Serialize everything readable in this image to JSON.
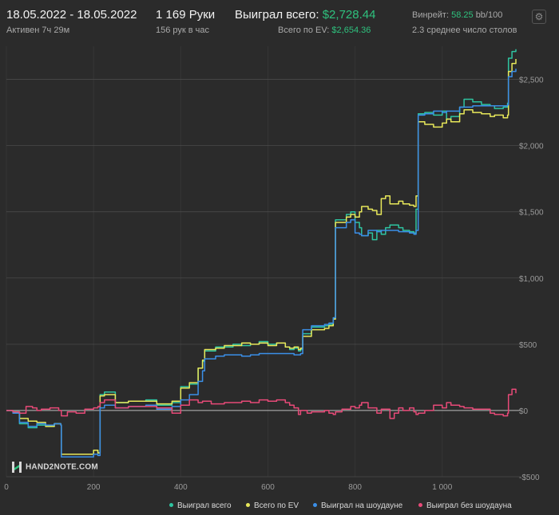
{
  "header": {
    "date_range": "18.05.2022 - 18.05.2022",
    "active_time": "Активен 7ч 29м",
    "hands": "1 169 Руки",
    "hands_per_hour": "156 рук в час",
    "won_total_label": "Выиграл всего:",
    "won_total_value": "$2,728.44",
    "ev_total_label": "Всего по EV:",
    "ev_total_value": "$2,654.36",
    "winrate_label": "Винрейт:",
    "winrate_value": "58.25",
    "winrate_suffix": "bb/100",
    "avg_tables": "2.3 среднее число столов"
  },
  "logo_text": "HAND2NOTE.COM",
  "icons": {
    "settings": "gear-icon"
  },
  "colors": {
    "background": "#2b2b2b",
    "won_total": "#2ec4a0",
    "ev": "#e8e85a",
    "showdown": "#3b8fe8",
    "no_showdown": "#e84a78",
    "accent": "#2ec27e"
  },
  "chart_data": {
    "type": "line",
    "xlim": [
      0,
      1169
    ],
    "ylim": [
      -500,
      2750
    ],
    "x_ticks": [
      0,
      200,
      400,
      600,
      800,
      1000
    ],
    "x_tick_labels": [
      "0",
      "200",
      "400",
      "600",
      "800",
      "1 000"
    ],
    "y_ticks": [
      -500,
      0,
      500,
      1000,
      1500,
      2000,
      2500
    ],
    "y_tick_labels": [
      "-$500",
      "$0",
      "$500",
      "$1,000",
      "$1,500",
      "$2,000",
      "$2,500"
    ],
    "grid": true,
    "legend_position": "bottom",
    "series": [
      {
        "name": "Выиграл всего",
        "color": "#2ec4a0",
        "points": [
          [
            0,
            0
          ],
          [
            15,
            -10
          ],
          [
            30,
            -100
          ],
          [
            50,
            -130
          ],
          [
            70,
            -110
          ],
          [
            90,
            -120
          ],
          [
            110,
            -100
          ],
          [
            125,
            -110
          ],
          [
            126,
            -330
          ],
          [
            160,
            -330
          ],
          [
            200,
            -300
          ],
          [
            210,
            -320
          ],
          [
            215,
            120
          ],
          [
            225,
            140
          ],
          [
            250,
            60
          ],
          [
            280,
            70
          ],
          [
            320,
            80
          ],
          [
            345,
            40
          ],
          [
            380,
            60
          ],
          [
            400,
            180
          ],
          [
            420,
            200
          ],
          [
            440,
            320
          ],
          [
            450,
            370
          ],
          [
            455,
            450
          ],
          [
            480,
            480
          ],
          [
            500,
            480
          ],
          [
            520,
            500
          ],
          [
            540,
            490
          ],
          [
            560,
            500
          ],
          [
            580,
            520
          ],
          [
            600,
            500
          ],
          [
            620,
            510
          ],
          [
            640,
            480
          ],
          [
            650,
            460
          ],
          [
            660,
            470
          ],
          [
            670,
            450
          ],
          [
            675,
            460
          ],
          [
            680,
            580
          ],
          [
            700,
            630
          ],
          [
            730,
            640
          ],
          [
            740,
            650
          ],
          [
            750,
            700
          ],
          [
            755,
            1440
          ],
          [
            780,
            1480
          ],
          [
            790,
            1500
          ],
          [
            800,
            1420
          ],
          [
            810,
            1380
          ],
          [
            815,
            1320
          ],
          [
            830,
            1340
          ],
          [
            840,
            1290
          ],
          [
            850,
            1360
          ],
          [
            860,
            1330
          ],
          [
            870,
            1380
          ],
          [
            880,
            1400
          ],
          [
            900,
            1380
          ],
          [
            910,
            1360
          ],
          [
            925,
            1350
          ],
          [
            935,
            1340
          ],
          [
            940,
            1520
          ],
          [
            945,
            2240
          ],
          [
            960,
            2250
          ],
          [
            980,
            2230
          ],
          [
            1000,
            2260
          ],
          [
            1010,
            2200
          ],
          [
            1020,
            2220
          ],
          [
            1040,
            2290
          ],
          [
            1050,
            2350
          ],
          [
            1070,
            2330
          ],
          [
            1090,
            2310
          ],
          [
            1110,
            2300
          ],
          [
            1120,
            2280
          ],
          [
            1140,
            2290
          ],
          [
            1150,
            2320
          ],
          [
            1152,
            2660
          ],
          [
            1160,
            2710
          ],
          [
            1169,
            2728
          ]
        ]
      },
      {
        "name": "Всего по EV",
        "color": "#e8e85a",
        "points": [
          [
            0,
            0
          ],
          [
            15,
            -10
          ],
          [
            30,
            -60
          ],
          [
            50,
            -80
          ],
          [
            70,
            -90
          ],
          [
            90,
            -120
          ],
          [
            110,
            -100
          ],
          [
            125,
            -110
          ],
          [
            126,
            -330
          ],
          [
            160,
            -330
          ],
          [
            200,
            -300
          ],
          [
            210,
            -320
          ],
          [
            215,
            110
          ],
          [
            225,
            120
          ],
          [
            250,
            60
          ],
          [
            280,
            70
          ],
          [
            320,
            70
          ],
          [
            345,
            50
          ],
          [
            380,
            70
          ],
          [
            400,
            170
          ],
          [
            420,
            210
          ],
          [
            440,
            320
          ],
          [
            450,
            380
          ],
          [
            455,
            460
          ],
          [
            480,
            470
          ],
          [
            500,
            490
          ],
          [
            520,
            490
          ],
          [
            540,
            510
          ],
          [
            560,
            500
          ],
          [
            580,
            510
          ],
          [
            600,
            490
          ],
          [
            620,
            510
          ],
          [
            640,
            480
          ],
          [
            650,
            470
          ],
          [
            660,
            480
          ],
          [
            670,
            460
          ],
          [
            675,
            470
          ],
          [
            680,
            560
          ],
          [
            700,
            610
          ],
          [
            730,
            620
          ],
          [
            740,
            640
          ],
          [
            750,
            690
          ],
          [
            755,
            1420
          ],
          [
            780,
            1460
          ],
          [
            790,
            1480
          ],
          [
            800,
            1460
          ],
          [
            810,
            1500
          ],
          [
            815,
            1540
          ],
          [
            830,
            1520
          ],
          [
            840,
            1510
          ],
          [
            850,
            1480
          ],
          [
            860,
            1600
          ],
          [
            870,
            1620
          ],
          [
            880,
            1560
          ],
          [
            900,
            1580
          ],
          [
            910,
            1560
          ],
          [
            925,
            1550
          ],
          [
            935,
            1540
          ],
          [
            940,
            1620
          ],
          [
            945,
            2180
          ],
          [
            960,
            2160
          ],
          [
            980,
            2140
          ],
          [
            1000,
            2170
          ],
          [
            1010,
            2200
          ],
          [
            1020,
            2180
          ],
          [
            1040,
            2240
          ],
          [
            1050,
            2270
          ],
          [
            1070,
            2250
          ],
          [
            1090,
            2240
          ],
          [
            1110,
            2220
          ],
          [
            1120,
            2230
          ],
          [
            1140,
            2210
          ],
          [
            1150,
            2230
          ],
          [
            1152,
            2560
          ],
          [
            1160,
            2620
          ],
          [
            1169,
            2654
          ]
        ]
      },
      {
        "name": "Выиграл на шоудауне",
        "color": "#3b8fe8",
        "points": [
          [
            0,
            0
          ],
          [
            15,
            -20
          ],
          [
            30,
            -90
          ],
          [
            50,
            -120
          ],
          [
            70,
            -100
          ],
          [
            90,
            -110
          ],
          [
            110,
            -100
          ],
          [
            125,
            -110
          ],
          [
            126,
            -350
          ],
          [
            160,
            -350
          ],
          [
            200,
            -330
          ],
          [
            210,
            -340
          ],
          [
            215,
            20
          ],
          [
            225,
            40
          ],
          [
            250,
            20
          ],
          [
            280,
            30
          ],
          [
            320,
            40
          ],
          [
            345,
            10
          ],
          [
            380,
            30
          ],
          [
            400,
            80
          ],
          [
            420,
            120
          ],
          [
            440,
            220
          ],
          [
            450,
            300
          ],
          [
            455,
            390
          ],
          [
            480,
            410
          ],
          [
            500,
            420
          ],
          [
            520,
            420
          ],
          [
            540,
            410
          ],
          [
            560,
            420
          ],
          [
            580,
            430
          ],
          [
            600,
            430
          ],
          [
            620,
            430
          ],
          [
            640,
            430
          ],
          [
            650,
            430
          ],
          [
            660,
            420
          ],
          [
            670,
            420
          ],
          [
            675,
            430
          ],
          [
            680,
            610
          ],
          [
            700,
            640
          ],
          [
            730,
            650
          ],
          [
            740,
            660
          ],
          [
            750,
            700
          ],
          [
            755,
            1380
          ],
          [
            780,
            1420
          ],
          [
            790,
            1440
          ],
          [
            800,
            1340
          ],
          [
            810,
            1330
          ],
          [
            815,
            1320
          ],
          [
            830,
            1360
          ],
          [
            840,
            1360
          ],
          [
            850,
            1350
          ],
          [
            860,
            1360
          ],
          [
            870,
            1360
          ],
          [
            880,
            1360
          ],
          [
            900,
            1350
          ],
          [
            910,
            1350
          ],
          [
            925,
            1340
          ],
          [
            935,
            1330
          ],
          [
            940,
            1360
          ],
          [
            945,
            2230
          ],
          [
            960,
            2240
          ],
          [
            980,
            2260
          ],
          [
            1000,
            2250
          ],
          [
            1010,
            2260
          ],
          [
            1020,
            2260
          ],
          [
            1040,
            2290
          ],
          [
            1050,
            2290
          ],
          [
            1070,
            2300
          ],
          [
            1090,
            2300
          ],
          [
            1110,
            2300
          ],
          [
            1120,
            2300
          ],
          [
            1140,
            2300
          ],
          [
            1150,
            2310
          ],
          [
            1152,
            2520
          ],
          [
            1160,
            2560
          ],
          [
            1169,
            2580
          ]
        ]
      },
      {
        "name": "Выиграл без шоудауна",
        "color": "#e84a78",
        "points": [
          [
            0,
            0
          ],
          [
            15,
            -10
          ],
          [
            30,
            -20
          ],
          [
            45,
            30
          ],
          [
            60,
            20
          ],
          [
            70,
            0
          ],
          [
            80,
            10
          ],
          [
            100,
            20
          ],
          [
            120,
            0
          ],
          [
            126,
            -40
          ],
          [
            140,
            -10
          ],
          [
            160,
            -20
          ],
          [
            180,
            10
          ],
          [
            200,
            20
          ],
          [
            210,
            30
          ],
          [
            215,
            60
          ],
          [
            225,
            80
          ],
          [
            250,
            20
          ],
          [
            280,
            30
          ],
          [
            320,
            30
          ],
          [
            345,
            20
          ],
          [
            380,
            -20
          ],
          [
            400,
            40
          ],
          [
            420,
            80
          ],
          [
            440,
            60
          ],
          [
            450,
            70
          ],
          [
            470,
            50
          ],
          [
            500,
            60
          ],
          [
            520,
            60
          ],
          [
            540,
            70
          ],
          [
            560,
            60
          ],
          [
            580,
            80
          ],
          [
            600,
            70
          ],
          [
            620,
            80
          ],
          [
            640,
            60
          ],
          [
            650,
            40
          ],
          [
            660,
            20
          ],
          [
            670,
            -30
          ],
          [
            675,
            0
          ],
          [
            690,
            -20
          ],
          [
            700,
            -10
          ],
          [
            730,
            0
          ],
          [
            740,
            -20
          ],
          [
            750,
            -30
          ],
          [
            755,
            -10
          ],
          [
            770,
            10
          ],
          [
            780,
            10
          ],
          [
            790,
            30
          ],
          [
            800,
            20
          ],
          [
            810,
            40
          ],
          [
            815,
            60
          ],
          [
            830,
            20
          ],
          [
            840,
            20
          ],
          [
            850,
            -20
          ],
          [
            860,
            10
          ],
          [
            870,
            10
          ],
          [
            880,
            -60
          ],
          [
            890,
            -20
          ],
          [
            900,
            20
          ],
          [
            910,
            0
          ],
          [
            925,
            20
          ],
          [
            935,
            -10
          ],
          [
            940,
            -30
          ],
          [
            945,
            -20
          ],
          [
            960,
            0
          ],
          [
            980,
            40
          ],
          [
            1000,
            20
          ],
          [
            1010,
            60
          ],
          [
            1020,
            40
          ],
          [
            1040,
            30
          ],
          [
            1050,
            20
          ],
          [
            1070,
            10
          ],
          [
            1090,
            10
          ],
          [
            1110,
            -20
          ],
          [
            1120,
            -30
          ],
          [
            1140,
            -40
          ],
          [
            1150,
            -20
          ],
          [
            1152,
            120
          ],
          [
            1160,
            160
          ],
          [
            1169,
            130
          ]
        ]
      }
    ]
  }
}
